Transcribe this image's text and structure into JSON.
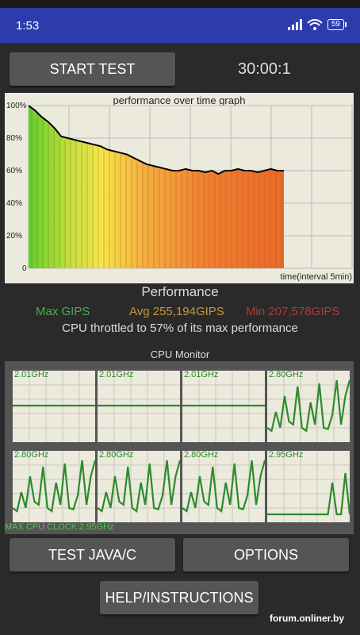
{
  "status_bar": {
    "time": "1:53",
    "battery": "59"
  },
  "controls": {
    "start_test": "START TEST",
    "timer": "30:00:1"
  },
  "graph": {
    "title": "performance over time graph",
    "x_label": "time(interval 5min)",
    "y_ticks": [
      "100%",
      "80%",
      "60%",
      "40%",
      "20%",
      "0"
    ],
    "line_color": "#000000"
  },
  "performance": {
    "title": "Performance",
    "max": "Max GIPS",
    "avg": "Avg 255,194GIPS",
    "min": "Min 207,578GIPS",
    "throttle": "CPU throttled to 57% of its max performance",
    "colors": {
      "max": "#4caf50",
      "avg": "#c8953a",
      "min": "#b23a3a"
    }
  },
  "cpu_monitor": {
    "title": "CPU Monitor",
    "cores": [
      {
        "freq": "2.01GHz",
        "mode": "flat"
      },
      {
        "freq": "2.01GHz",
        "mode": "flat"
      },
      {
        "freq": "2.01GHz",
        "mode": "flat"
      },
      {
        "freq": "2.80GHz",
        "mode": "spiky"
      },
      {
        "freq": "2.80GHz",
        "mode": "spiky"
      },
      {
        "freq": "2.80GHz",
        "mode": "spiky"
      },
      {
        "freq": "2.80GHz",
        "mode": "spiky"
      },
      {
        "freq": "2.95GHz",
        "mode": "low"
      }
    ],
    "max_clock": "MAX CPU CLOCK:2.95GHz"
  },
  "buttons": {
    "test_java": "TEST JAVA/C",
    "options": "OPTIONS",
    "help": "HELP/INSTRUCTIONS"
  },
  "watermark": "forum.onliner.by",
  "chart_data": {
    "type": "line",
    "title": "performance over time graph",
    "xlabel": "time(interval 5min)",
    "ylabel": "",
    "ylim": [
      0,
      100
    ],
    "grid": true,
    "series": [
      {
        "values": [
          100,
          97,
          93,
          90,
          86,
          81,
          80,
          79,
          78,
          77,
          76,
          75,
          73,
          72,
          71,
          70,
          68,
          66,
          64,
          63,
          62,
          61,
          60,
          60,
          61,
          60,
          60,
          59,
          60,
          58,
          60,
          60,
          61,
          60,
          60,
          59,
          60,
          61,
          60,
          60
        ]
      }
    ]
  }
}
